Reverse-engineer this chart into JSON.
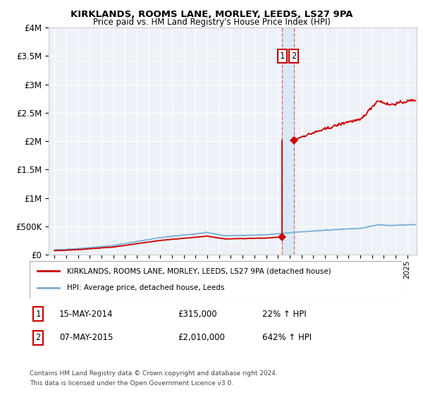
{
  "title1": "KIRKLANDS, ROOMS LANE, MORLEY, LEEDS, LS27 9PA",
  "title2": "Price paid vs. HM Land Registry's House Price Index (HPI)",
  "legend_line1": "KIRKLANDS, ROOMS LANE, MORLEY, LEEDS, LS27 9PA (detached house)",
  "legend_line2": "HPI: Average price, detached house, Leeds",
  "annotation1_label": "1",
  "annotation1_date": "15-MAY-2014",
  "annotation1_price": "£315,000",
  "annotation1_pct": "22% ↑ HPI",
  "annotation2_label": "2",
  "annotation2_date": "07-MAY-2015",
  "annotation2_price": "£2,010,000",
  "annotation2_pct": "642% ↑ HPI",
  "footnote1": "Contains HM Land Registry data © Crown copyright and database right 2024.",
  "footnote2": "This data is licensed under the Open Government Licence v3.0.",
  "hpi_color": "#7aafd4",
  "price_color": "#cc0000",
  "marker_color": "#cc0000",
  "vline_color": "#e87070",
  "vshade_color": "#d8e8f5",
  "background_color": "#eef2f8",
  "sale1_year": 2014.37,
  "sale2_year": 2015.35,
  "sale1_price": 315000,
  "sale2_price": 2010000,
  "ylim_max": 4000000,
  "xlim_min": 1994.5,
  "xlim_max": 2025.8
}
